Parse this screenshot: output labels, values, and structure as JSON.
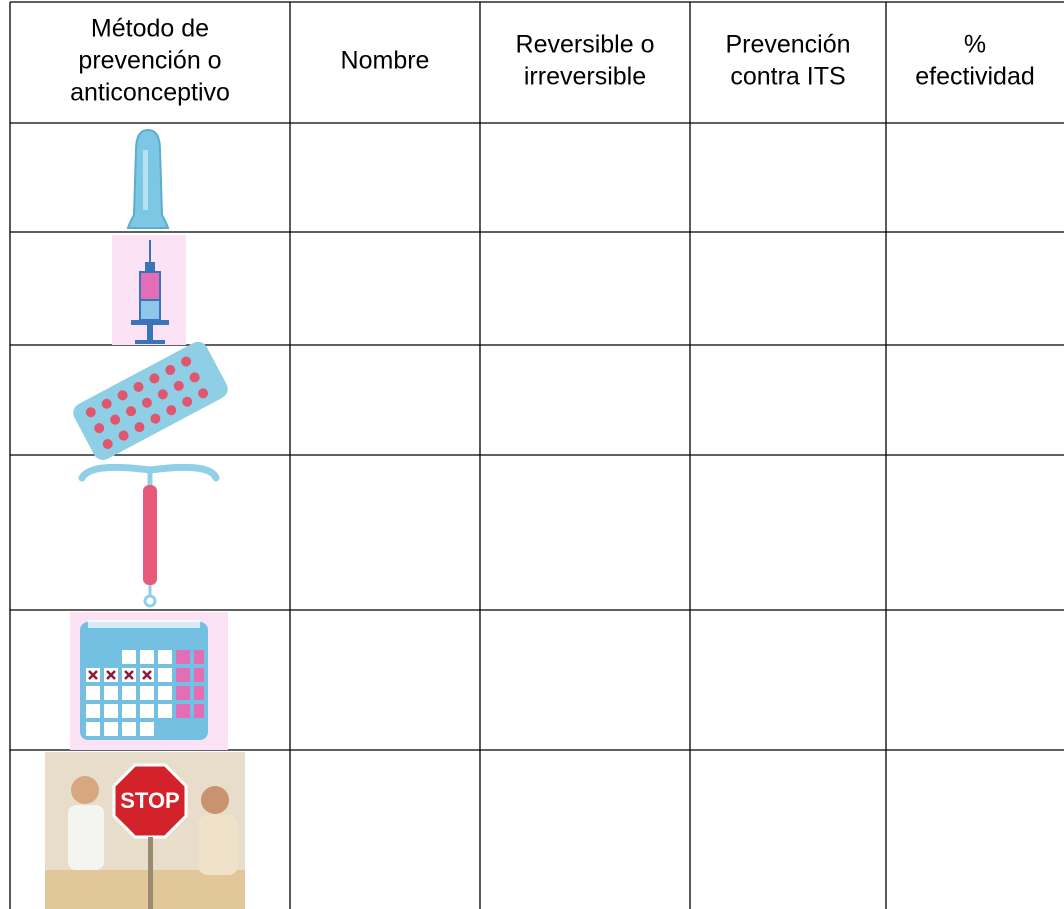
{
  "table": {
    "header": [
      [
        "Método de",
        "prevención o",
        "anticonceptivo"
      ],
      [
        "Nombre"
      ],
      [
        "Reversible o",
        "irreversible"
      ],
      [
        "Prevención",
        "contra ITS"
      ],
      [
        "%",
        "efectividad"
      ]
    ],
    "stop_sign": "STOP"
  }
}
